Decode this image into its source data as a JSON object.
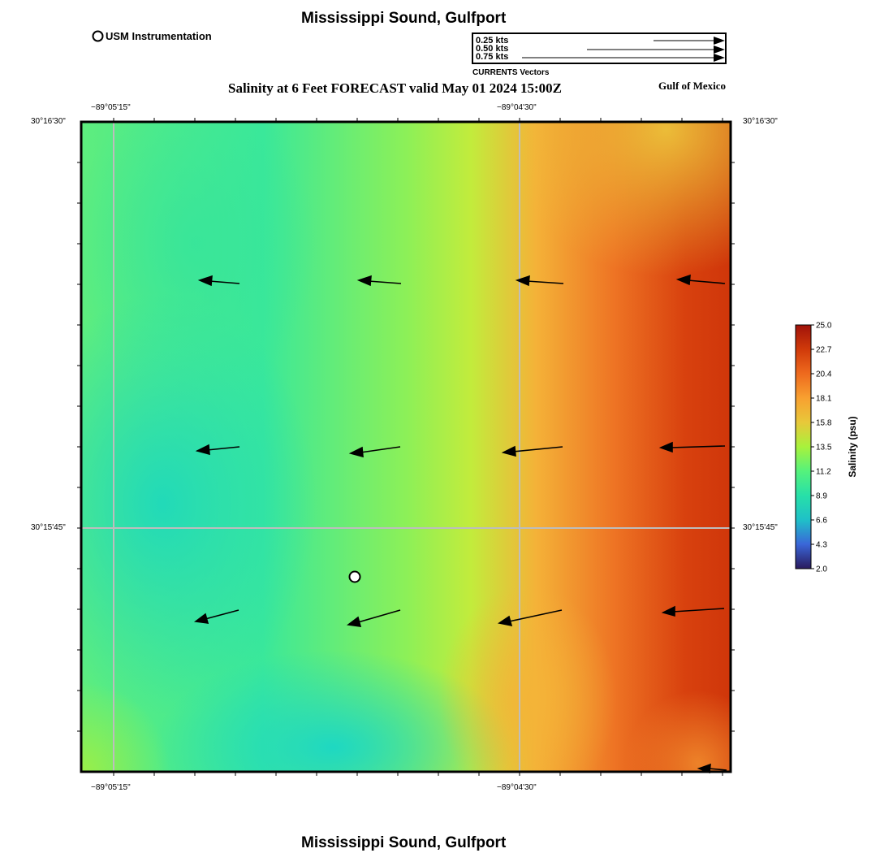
{
  "header": {
    "title": "Mississippi Sound, Gulfport",
    "subtitle": "Salinity at 6 Feet FORECAST valid May 01 2024 15:00Z",
    "region": "Gulf of Mexico",
    "station_legend": "USM Instrumentation"
  },
  "vector_legend": {
    "caption": "CURRENTS Vectors",
    "entries": [
      {
        "label": "0.25 kts",
        "speed": 0.25
      },
      {
        "label": "0.50 kts",
        "speed": 0.5
      },
      {
        "label": "0.75 kts",
        "speed": 0.75
      }
    ]
  },
  "axes": {
    "x_ticks": [
      "−89°05'15\"",
      "−89°04'30\""
    ],
    "y_ticks": [
      "30°16'30\"",
      "30°15'45\""
    ]
  },
  "colorbar": {
    "label": "Salinity (psu)",
    "min": 2.0,
    "max": 25.0,
    "ticks": [
      "25.0",
      "22.7",
      "20.4",
      "18.1",
      "15.8",
      "13.5",
      "11.2",
      "8.9",
      "6.6",
      "4.3",
      "2.0"
    ],
    "colors": [
      "#2a1a5e",
      "#3a66d8",
      "#1fc0c8",
      "#27e0a8",
      "#55f27c",
      "#a8f23c",
      "#e8c83a",
      "#f8a030",
      "#ee6a1e",
      "#d03a0a",
      "#a0120a"
    ]
  },
  "map": {
    "stations": [
      {
        "name": "USM Instrumentation",
        "type": "circle"
      }
    ],
    "current_vectors_note": "Westward surface currents across the sound"
  },
  "footer": {
    "title": "Mississippi Sound, Gulfport"
  }
}
